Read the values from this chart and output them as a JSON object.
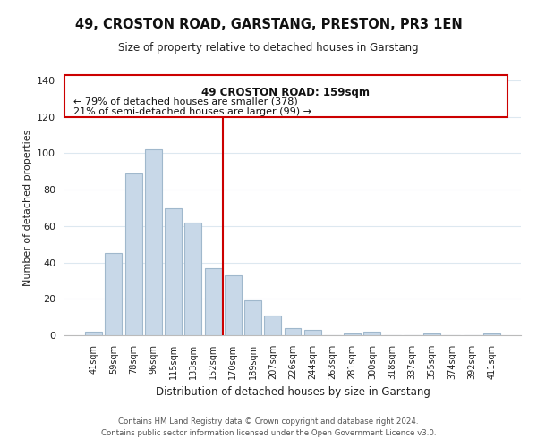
{
  "title": "49, CROSTON ROAD, GARSTANG, PRESTON, PR3 1EN",
  "subtitle": "Size of property relative to detached houses in Garstang",
  "xlabel": "Distribution of detached houses by size in Garstang",
  "ylabel": "Number of detached properties",
  "bar_labels": [
    "41sqm",
    "59sqm",
    "78sqm",
    "96sqm",
    "115sqm",
    "133sqm",
    "152sqm",
    "170sqm",
    "189sqm",
    "207sqm",
    "226sqm",
    "244sqm",
    "263sqm",
    "281sqm",
    "300sqm",
    "318sqm",
    "337sqm",
    "355sqm",
    "374sqm",
    "392sqm",
    "411sqm"
  ],
  "bar_values": [
    2,
    45,
    89,
    102,
    70,
    62,
    37,
    33,
    19,
    11,
    4,
    3,
    0,
    1,
    2,
    0,
    0,
    1,
    0,
    0,
    1
  ],
  "bar_color": "#c8d8e8",
  "bar_edge_color": "#a0b8cc",
  "vline_color": "#cc0000",
  "vline_index": 6.5,
  "ylim": [
    0,
    140
  ],
  "yticks": [
    0,
    20,
    40,
    60,
    80,
    100,
    120,
    140
  ],
  "annotation_title": "49 CROSTON ROAD: 159sqm",
  "annotation_line1": "← 79% of detached houses are smaller (378)",
  "annotation_line2": "21% of semi-detached houses are larger (99) →",
  "annotation_box_color": "#ffffff",
  "annotation_box_edge": "#cc0000",
  "footer1": "Contains HM Land Registry data © Crown copyright and database right 2024.",
  "footer2": "Contains public sector information licensed under the Open Government Licence v3.0.",
  "background_color": "#ffffff",
  "grid_color": "#dde8f0"
}
